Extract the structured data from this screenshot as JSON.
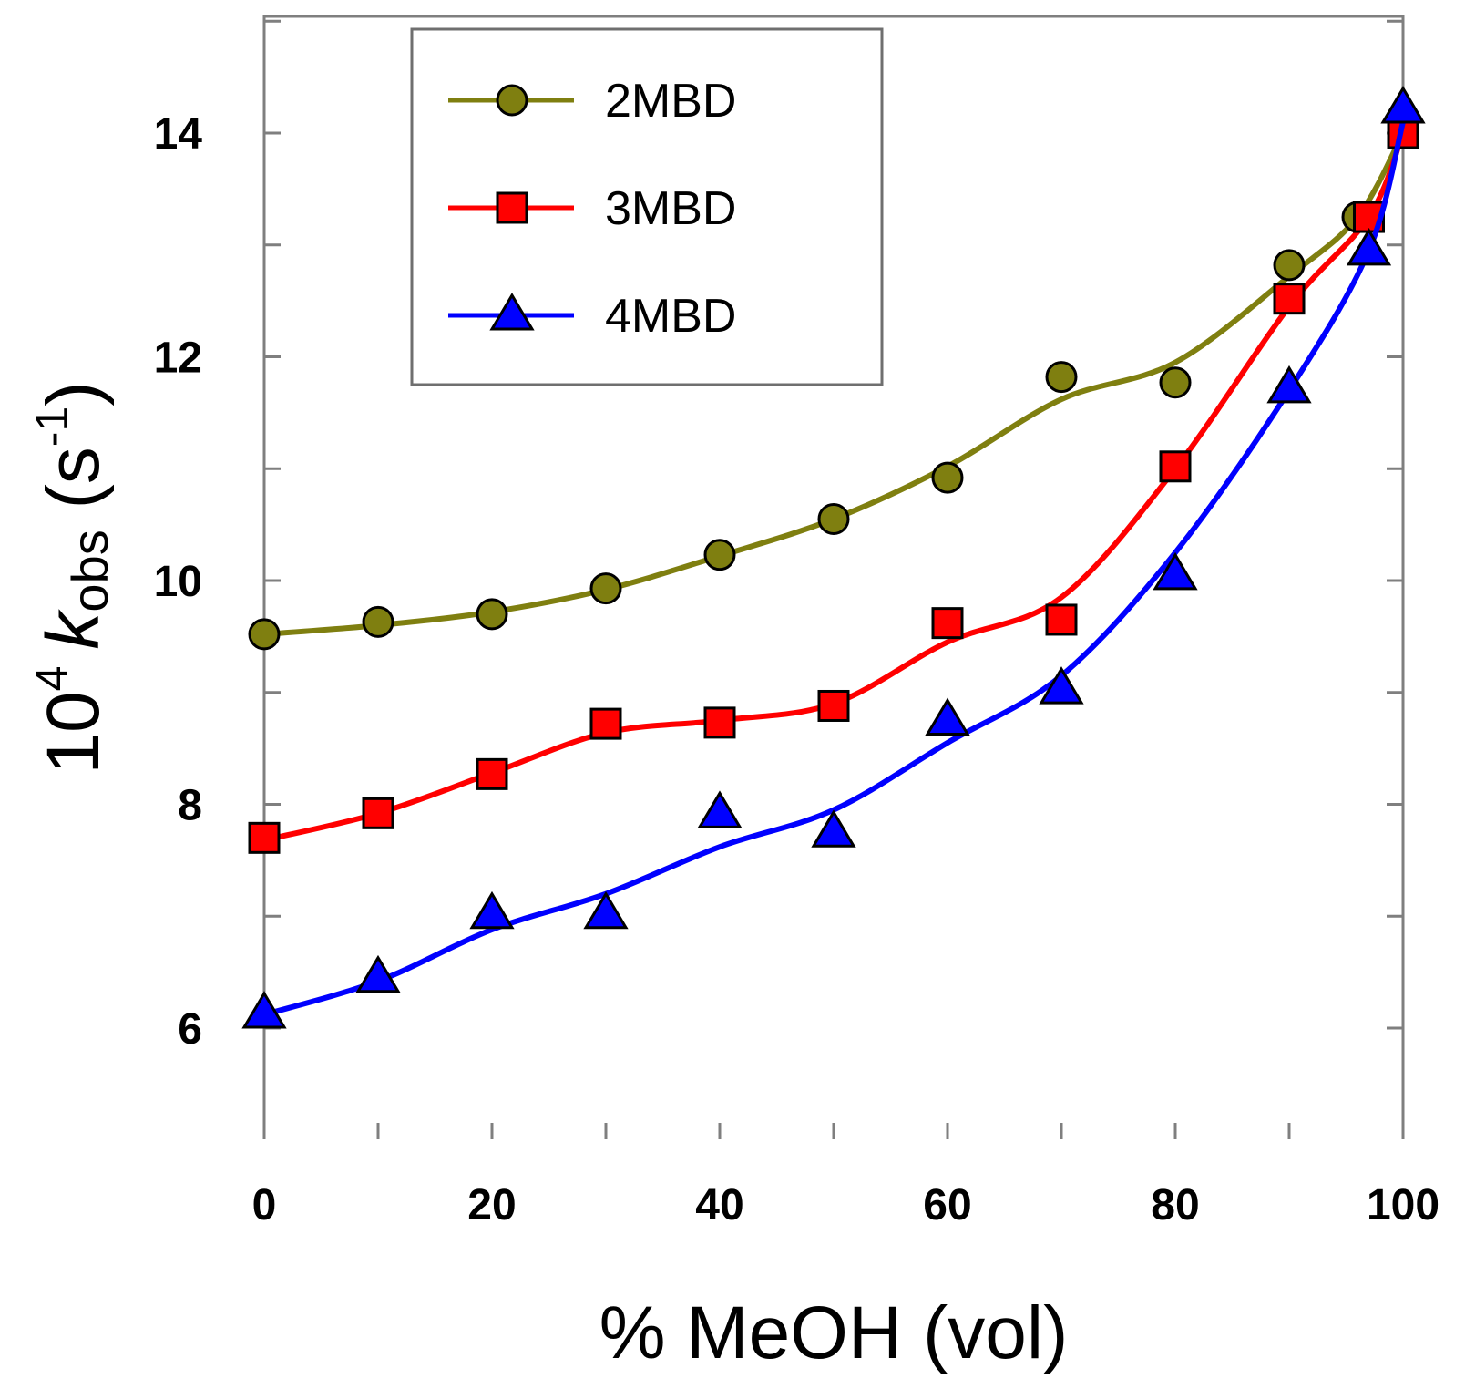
{
  "chart_data": {
    "type": "line",
    "title": "",
    "xlabel": "% MeOH (vol)",
    "ylabel": {
      "prefix": "10",
      "prefix_sup": "4",
      "symbol": "k",
      "symbol_sub": "obs",
      "unit_open": " (s",
      "unit_sup": "-1",
      "unit_close": ")"
    },
    "xlim": [
      0,
      100
    ],
    "ylim": [
      5,
      15
    ],
    "x_ticks": [
      0,
      10,
      20,
      30,
      40,
      50,
      60,
      70,
      80,
      90,
      100
    ],
    "x_tick_labels": [
      "0",
      "20",
      "40",
      "60",
      "80",
      "100"
    ],
    "x_tick_label_values": [
      0,
      20,
      40,
      60,
      80,
      100
    ],
    "y_ticks": [
      5,
      6,
      7,
      8,
      9,
      10,
      11,
      12,
      13,
      14,
      15
    ],
    "y_tick_labels": [
      "6",
      "8",
      "10",
      "12",
      "14"
    ],
    "y_tick_label_values": [
      6,
      8,
      10,
      12,
      14
    ],
    "grid": false,
    "legend_position": "top-left",
    "series": [
      {
        "name": "2MBD",
        "color": "#7f7f10",
        "marker": "circle",
        "x": [
          0,
          10,
          20,
          30,
          40,
          50,
          60,
          70,
          80,
          90,
          96,
          100
        ],
        "y": [
          9.52,
          9.63,
          9.7,
          9.93,
          10.23,
          10.55,
          10.92,
          11.82,
          11.77,
          12.82,
          13.25,
          14.0
        ],
        "fit": [
          9.52,
          9.6,
          9.72,
          9.92,
          10.22,
          10.55,
          11.02,
          11.62,
          11.95,
          12.72,
          13.25,
          14.0
        ]
      },
      {
        "name": "3MBD",
        "color": "#ff0000",
        "marker": "square",
        "x": [
          0,
          10,
          20,
          30,
          40,
          50,
          60,
          70,
          80,
          90,
          97,
          100
        ],
        "y": [
          7.7,
          7.92,
          8.27,
          8.72,
          8.73,
          8.88,
          9.62,
          9.65,
          11.02,
          12.52,
          13.25,
          14.0
        ],
        "fit": [
          7.68,
          7.92,
          8.28,
          8.64,
          8.75,
          8.9,
          9.45,
          9.85,
          11.0,
          12.45,
          13.25,
          14.0
        ]
      },
      {
        "name": "4MBD",
        "color": "#0000ff",
        "marker": "triangle",
        "x": [
          0,
          10,
          20,
          30,
          40,
          50,
          60,
          70,
          80,
          90,
          97,
          100
        ],
        "y": [
          6.13,
          6.45,
          7.02,
          7.02,
          7.92,
          7.75,
          8.75,
          9.03,
          10.05,
          11.72,
          12.95,
          14.22
        ],
        "fit": [
          6.12,
          6.42,
          6.88,
          7.2,
          7.62,
          7.95,
          8.55,
          9.15,
          10.25,
          11.7,
          12.95,
          14.1
        ]
      }
    ]
  }
}
